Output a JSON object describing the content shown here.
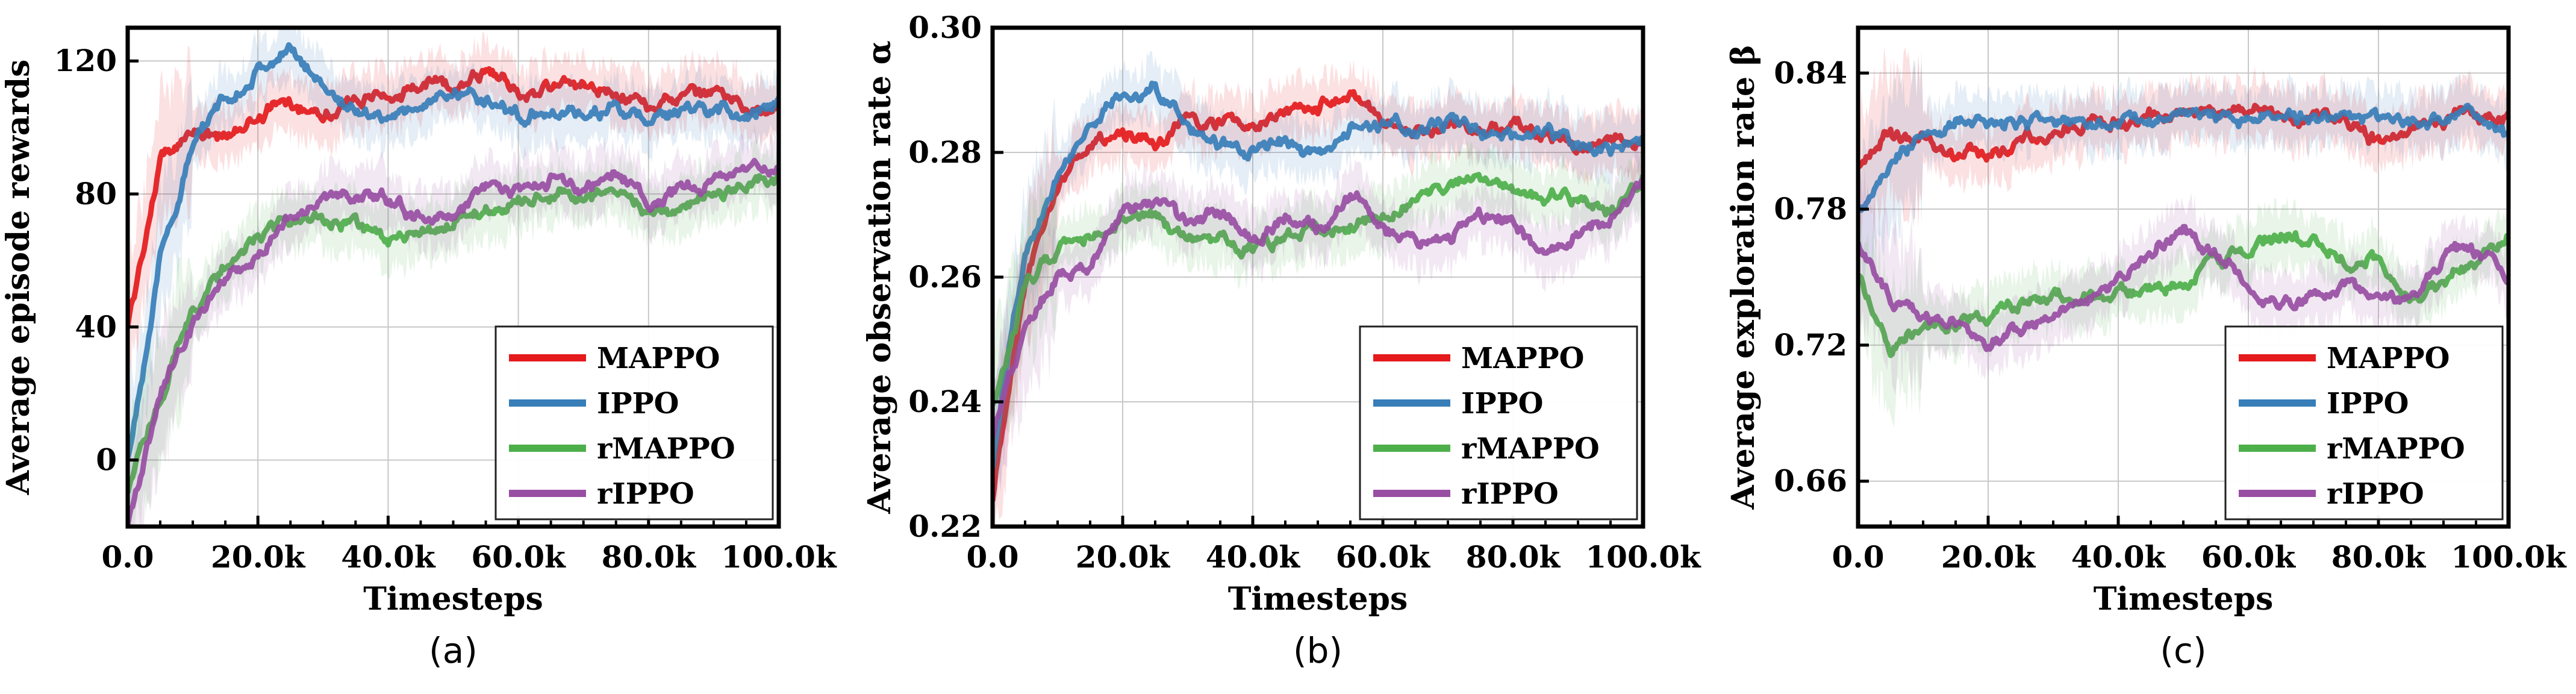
{
  "chart_data": [
    {
      "type": "line",
      "panel_label": "(a)",
      "xlabel": "Timesteps",
      "ylabel": "Average episode rewards",
      "xlim": [
        0,
        100000
      ],
      "ylim": [
        -20,
        130
      ],
      "x_ticks": [
        0,
        20000,
        40000,
        60000,
        80000,
        100000
      ],
      "x_tick_labels": [
        "0.0",
        "20.0k",
        "40.0k",
        "60.0k",
        "80.0k",
        "100.0k"
      ],
      "y_ticks": [
        0,
        40,
        80,
        120
      ],
      "y_tick_labels": [
        "0",
        "40",
        "80",
        "120"
      ],
      "grid": true,
      "legend_position": "bottom-right",
      "x": [
        0,
        5000,
        10000,
        15000,
        20000,
        25000,
        30000,
        35000,
        40000,
        45000,
        50000,
        55000,
        60000,
        65000,
        70000,
        75000,
        80000,
        85000,
        90000,
        95000,
        100000
      ],
      "series": [
        {
          "name": "MAPPO",
          "color": "#e41a1c",
          "values": [
            40,
            90,
            100,
            96,
            104,
            108,
            105,
            108,
            110,
            112,
            113,
            118,
            110,
            112,
            113,
            111,
            107,
            108,
            110,
            107,
            105
          ]
        },
        {
          "name": "IPPO",
          "color": "#377eb8",
          "values": [
            0,
            60,
            95,
            108,
            118,
            123,
            113,
            105,
            104,
            106,
            111,
            108,
            104,
            106,
            103,
            106,
            102,
            104,
            106,
            104,
            106
          ]
        },
        {
          "name": "rMAPPO",
          "color": "#4daf4a",
          "values": [
            -10,
            20,
            45,
            58,
            67,
            72,
            72,
            70,
            65,
            67,
            72,
            75,
            78,
            80,
            80,
            82,
            74,
            77,
            79,
            82,
            85
          ]
        },
        {
          "name": "rIPPO",
          "color": "#984ea3",
          "values": [
            -20,
            20,
            40,
            55,
            62,
            74,
            79,
            81,
            78,
            72,
            74,
            82,
            80,
            84,
            82,
            86,
            78,
            82,
            84,
            86,
            88
          ]
        }
      ]
    },
    {
      "type": "line",
      "panel_label": "(b)",
      "xlabel": "Timesteps",
      "ylabel": "Average observation rate α",
      "xlim": [
        0,
        100000
      ],
      "ylim": [
        0.22,
        0.3
      ],
      "x_ticks": [
        0,
        20000,
        40000,
        60000,
        80000,
        100000
      ],
      "x_tick_labels": [
        "0.0",
        "20.0k",
        "40.0k",
        "60.0k",
        "80.0k",
        "100.0k"
      ],
      "y_ticks": [
        0.22,
        0.24,
        0.26,
        0.28,
        0.3
      ],
      "y_tick_labels": [
        "0.22",
        "0.24",
        "0.26",
        "0.28",
        "0.30"
      ],
      "grid": true,
      "legend_position": "bottom-right",
      "x": [
        0,
        5000,
        10000,
        15000,
        20000,
        25000,
        30000,
        35000,
        40000,
        45000,
        50000,
        55000,
        60000,
        65000,
        70000,
        75000,
        80000,
        85000,
        90000,
        95000,
        100000
      ],
      "series": [
        {
          "name": "MAPPO",
          "color": "#e41a1c",
          "values": [
            0.225,
            0.26,
            0.275,
            0.282,
            0.283,
            0.281,
            0.285,
            0.285,
            0.284,
            0.286,
            0.287,
            0.29,
            0.284,
            0.283,
            0.284,
            0.283,
            0.285,
            0.283,
            0.281,
            0.282,
            0.281
          ]
        },
        {
          "name": "IPPO",
          "color": "#377eb8",
          "values": [
            0.23,
            0.265,
            0.277,
            0.285,
            0.289,
            0.291,
            0.284,
            0.281,
            0.28,
            0.282,
            0.279,
            0.283,
            0.285,
            0.283,
            0.285,
            0.284,
            0.282,
            0.283,
            0.281,
            0.28,
            0.282
          ]
        },
        {
          "name": "rMAPPO",
          "color": "#4daf4a",
          "values": [
            0.24,
            0.258,
            0.265,
            0.266,
            0.268,
            0.27,
            0.266,
            0.267,
            0.264,
            0.266,
            0.268,
            0.268,
            0.27,
            0.272,
            0.274,
            0.275,
            0.274,
            0.272,
            0.273,
            0.271,
            0.276
          ]
        },
        {
          "name": "rIPPO",
          "color": "#984ea3",
          "values": [
            0.235,
            0.252,
            0.26,
            0.262,
            0.27,
            0.272,
            0.268,
            0.27,
            0.266,
            0.27,
            0.268,
            0.272,
            0.269,
            0.265,
            0.267,
            0.27,
            0.268,
            0.263,
            0.267,
            0.27,
            0.275
          ]
        }
      ]
    },
    {
      "type": "line",
      "panel_label": "(c)",
      "xlabel": "Timesteps",
      "ylabel": "Average exploration rate β",
      "xlim": [
        0,
        100000
      ],
      "ylim": [
        0.64,
        0.86
      ],
      "x_ticks": [
        0,
        20000,
        40000,
        60000,
        80000,
        100000
      ],
      "x_tick_labels": [
        "0.0",
        "20.0k",
        "40.0k",
        "60.0k",
        "80.0k",
        "100.0k"
      ],
      "y_ticks": [
        0.66,
        0.72,
        0.78,
        0.84
      ],
      "y_tick_labels": [
        "0.66",
        "0.72",
        "0.78",
        "0.84"
      ],
      "grid": true,
      "legend_position": "bottom-right",
      "x": [
        0,
        5000,
        10000,
        15000,
        20000,
        25000,
        30000,
        35000,
        40000,
        45000,
        50000,
        55000,
        60000,
        65000,
        70000,
        75000,
        80000,
        85000,
        90000,
        95000,
        100000
      ],
      "series": [
        {
          "name": "MAPPO",
          "color": "#e41a1c",
          "values": [
            0.8,
            0.812,
            0.81,
            0.803,
            0.804,
            0.81,
            0.815,
            0.818,
            0.818,
            0.82,
            0.822,
            0.822,
            0.823,
            0.822,
            0.82,
            0.822,
            0.81,
            0.815,
            0.82,
            0.82,
            0.82
          ]
        },
        {
          "name": "IPPO",
          "color": "#377eb8",
          "values": [
            0.78,
            0.795,
            0.815,
            0.82,
            0.818,
            0.818,
            0.816,
            0.816,
            0.818,
            0.82,
            0.822,
            0.82,
            0.818,
            0.82,
            0.82,
            0.822,
            0.82,
            0.818,
            0.82,
            0.822,
            0.812
          ]
        },
        {
          "name": "rMAPPO",
          "color": "#4daf4a",
          "values": [
            0.75,
            0.72,
            0.728,
            0.73,
            0.735,
            0.738,
            0.742,
            0.74,
            0.745,
            0.745,
            0.748,
            0.76,
            0.762,
            0.77,
            0.765,
            0.76,
            0.758,
            0.74,
            0.748,
            0.755,
            0.77
          ]
        },
        {
          "name": "rIPPO",
          "color": "#984ea3",
          "values": [
            0.765,
            0.74,
            0.73,
            0.73,
            0.72,
            0.728,
            0.735,
            0.74,
            0.748,
            0.76,
            0.772,
            0.76,
            0.745,
            0.74,
            0.74,
            0.745,
            0.738,
            0.74,
            0.762,
            0.76,
            0.75
          ]
        }
      ]
    }
  ]
}
